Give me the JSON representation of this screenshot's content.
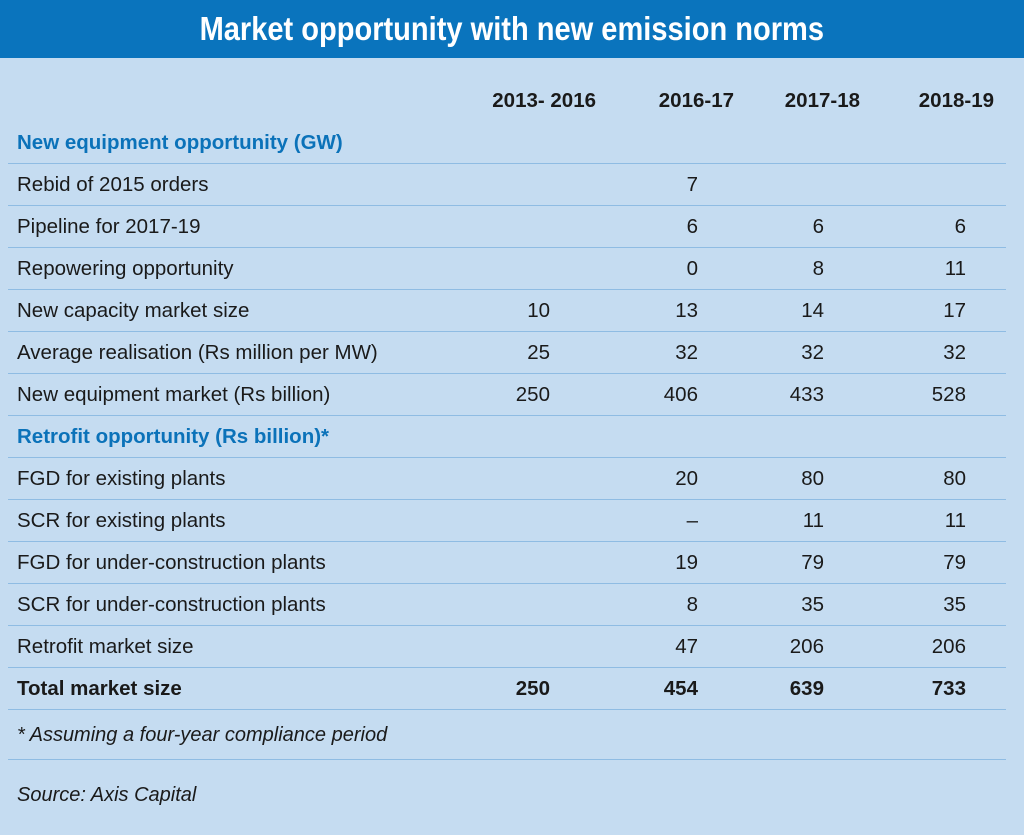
{
  "title": "Market opportunity with new emission norms",
  "chart_data": {
    "type": "table",
    "title": "Market opportunity with new emission norms",
    "columns": [
      "2013- 2016",
      "2016-17",
      "2017-18",
      "2018-19"
    ],
    "sections": [
      {
        "heading": "New equipment opportunity (GW)",
        "rows": [
          {
            "label": "Rebid  of 2015 orders",
            "values": [
              "",
              "7",
              "",
              ""
            ]
          },
          {
            "label": "Pipeline for 2017-19",
            "values": [
              "",
              "6",
              "6",
              "6"
            ]
          },
          {
            "label": "Repowering opportunity",
            "values": [
              "",
              "0",
              "8",
              "11"
            ]
          },
          {
            "label": "New capacity market size",
            "values": [
              "10",
              "13",
              "14",
              "17"
            ]
          },
          {
            "label": "Average realisation (Rs million per MW)",
            "values": [
              "25",
              "32",
              "32",
              "32"
            ]
          },
          {
            "label": "New equipment market (Rs billion)",
            "values": [
              "250",
              "406",
              "433",
              "528"
            ]
          }
        ]
      },
      {
        "heading": "Retrofit opportunity (Rs billion)*",
        "rows": [
          {
            "label": "FGD for existing plants",
            "values": [
              "",
              "20",
              "80",
              "80"
            ]
          },
          {
            "label": "SCR for existing plants",
            "values": [
              "",
              "–",
              "11",
              "11"
            ]
          },
          {
            "label": "FGD for under-construction plants",
            "values": [
              "",
              "19",
              "79",
              "79"
            ]
          },
          {
            "label": "SCR for under-construction plants",
            "values": [
              "",
              "8",
              "35",
              "35"
            ]
          },
          {
            "label": "Retrofit market size",
            "values": [
              "",
              "47",
              "206",
              "206"
            ]
          }
        ]
      }
    ],
    "total": {
      "label": "Total market size",
      "values": [
        "250",
        "454",
        "639",
        "733"
      ]
    }
  },
  "footnote": "* Assuming a four-year compliance period",
  "source": "Source: Axis Capital",
  "colors": {
    "title_bg": "#0a74bd",
    "panel_bg": "#c5dcf1",
    "section_text": "#0b72b9",
    "rule": "#8fbce3"
  }
}
